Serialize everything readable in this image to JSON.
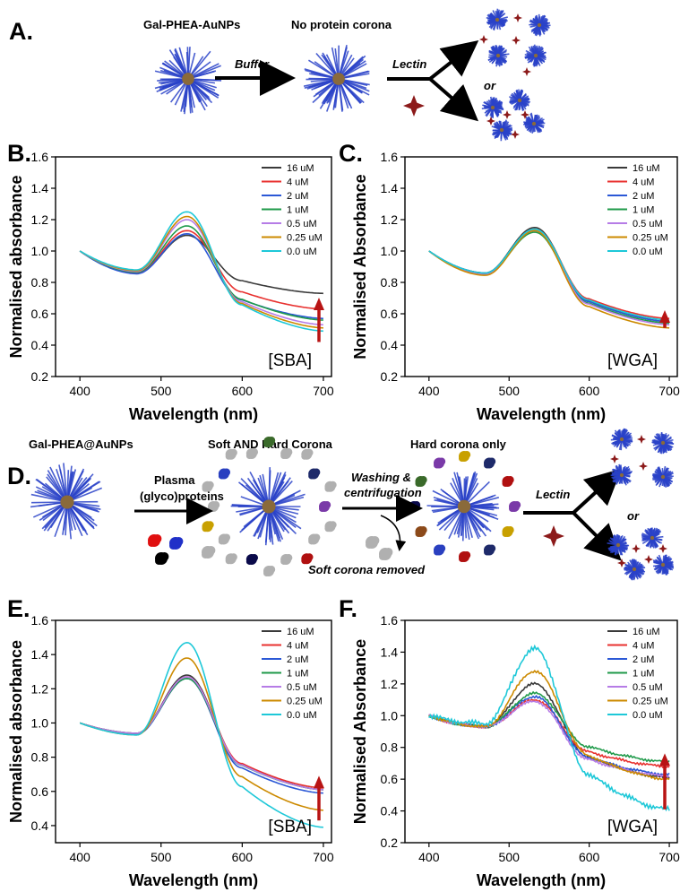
{
  "scheme_a": {
    "letter": "A.",
    "label_left": "Gal-PHEA-AuNPs",
    "label_mid": "No protein corona",
    "arrow1": "Buffer",
    "arrow2": "Lectin",
    "or": "or"
  },
  "scheme_d": {
    "letter": "D.",
    "label_left": "Gal-PHEA@AuNPs",
    "label_mid": "Soft AND Hard Corona",
    "label_right": "Hard corona only",
    "arrow1_line1": "Plasma",
    "arrow1_line2": "(glyco)proteins",
    "arrow2_line1": "Washing &",
    "arrow2_line2": "centrifugation",
    "arrow3": "Lectin",
    "removed": "Soft corona removed",
    "or": "or"
  },
  "colors": {
    "16 uM": "#3a3a3a",
    "4 uM": "#e8312f",
    "2 uM": "#2b58d6",
    "1 uM": "#1f9a4a",
    "0.5 uM": "#b67ce6",
    "0.25 uM": "#cc8a00",
    "0.0 uM": "#1ec8d8",
    "trend_arrow": "#b81414",
    "nanoparticle": "#2a42c8",
    "lectin": "#8c1a1a"
  },
  "chart_data": [
    {
      "id": "B",
      "letter": "B.",
      "type": "line",
      "xlabel": "Wavelength (nm)",
      "ylabel": "Normalised absorbance",
      "xlim": [
        370,
        710
      ],
      "ylim": [
        0.2,
        1.6
      ],
      "xticks": [
        "400",
        "500",
        "600",
        "700"
      ],
      "yticks": [
        "0.2",
        "0.4",
        "0.6",
        "0.8",
        "1.0",
        "1.2",
        "1.4",
        "1.6"
      ],
      "tag": "[SBA]",
      "arrow_from": 0.42,
      "arrow_to": 0.68,
      "series": [
        {
          "name": "16 uM",
          "profile": {
            "start": 1.0,
            "trough": 0.86,
            "peak": 1.1,
            "end": 0.73,
            "noise": 0
          }
        },
        {
          "name": "4 uM",
          "profile": {
            "start": 1.0,
            "trough": 0.86,
            "peak": 1.13,
            "end": 0.63,
            "noise": 0
          }
        },
        {
          "name": "2 uM",
          "profile": {
            "start": 1.0,
            "trough": 0.855,
            "peak": 1.11,
            "end": 0.57,
            "noise": 0
          }
        },
        {
          "name": "1 uM",
          "profile": {
            "start": 1.0,
            "trough": 0.865,
            "peak": 1.16,
            "end": 0.56,
            "noise": 0
          }
        },
        {
          "name": "0.5 uM",
          "profile": {
            "start": 1.0,
            "trough": 0.87,
            "peak": 1.2,
            "end": 0.53,
            "noise": 0
          }
        },
        {
          "name": "0.25 uM",
          "profile": {
            "start": 1.0,
            "trough": 0.875,
            "peak": 1.22,
            "end": 0.51,
            "noise": 0
          }
        },
        {
          "name": "0.0 uM",
          "profile": {
            "start": 1.0,
            "trough": 0.88,
            "peak": 1.25,
            "end": 0.49,
            "noise": 0
          }
        }
      ]
    },
    {
      "id": "C",
      "letter": "C.",
      "type": "line",
      "xlabel": "Wavelength (nm)",
      "ylabel": "Normalised Absorbance",
      "xlim": [
        370,
        710
      ],
      "ylim": [
        0.2,
        1.6
      ],
      "xticks": [
        "400",
        "500",
        "600",
        "700"
      ],
      "yticks": [
        "0.2",
        "0.4",
        "0.6",
        "0.8",
        "1.0",
        "1.2",
        "1.4",
        "1.6"
      ],
      "tag": "[WGA]",
      "arrow_from": 0.51,
      "arrow_to": 0.6,
      "series": [
        {
          "name": "16 uM",
          "profile": {
            "start": 1.0,
            "trough": 0.86,
            "peak": 1.15,
            "end": 0.55,
            "noise": 0
          }
        },
        {
          "name": "4 uM",
          "profile": {
            "start": 1.0,
            "trough": 0.855,
            "peak": 1.14,
            "end": 0.57,
            "noise": 0
          }
        },
        {
          "name": "2 uM",
          "profile": {
            "start": 1.0,
            "trough": 0.86,
            "peak": 1.13,
            "end": 0.55,
            "noise": 0
          }
        },
        {
          "name": "1 uM",
          "profile": {
            "start": 1.0,
            "trough": 0.855,
            "peak": 1.12,
            "end": 0.54,
            "noise": 0
          }
        },
        {
          "name": "0.5 uM",
          "profile": {
            "start": 1.0,
            "trough": 0.85,
            "peak": 1.13,
            "end": 0.53,
            "noise": 0
          }
        },
        {
          "name": "0.25 uM",
          "profile": {
            "start": 1.0,
            "trough": 0.845,
            "peak": 1.13,
            "end": 0.51,
            "noise": 0
          }
        },
        {
          "name": "0.0 uM",
          "profile": {
            "start": 1.0,
            "trough": 0.86,
            "peak": 1.14,
            "end": 0.56,
            "noise": 0
          }
        }
      ]
    },
    {
      "id": "E",
      "letter": "E.",
      "type": "line",
      "xlabel": "Wavelength (nm)",
      "ylabel": "Normalised absorbance",
      "xlim": [
        370,
        710
      ],
      "ylim": [
        0.3,
        1.6
      ],
      "xticks": [
        "400",
        "500",
        "600",
        "700"
      ],
      "yticks": [
        "0.4",
        "0.6",
        "0.8",
        "1.0",
        "1.2",
        "1.4",
        "1.6"
      ],
      "tag": "[SBA]",
      "arrow_from": 0.43,
      "arrow_to": 0.67,
      "series": [
        {
          "name": "16 uM",
          "profile": {
            "start": 1.0,
            "trough": 0.94,
            "peak": 1.28,
            "end": 0.61,
            "noise": 0
          }
        },
        {
          "name": "4 uM",
          "profile": {
            "start": 1.0,
            "trough": 0.94,
            "peak": 1.27,
            "end": 0.62,
            "noise": 0
          }
        },
        {
          "name": "2 uM",
          "profile": {
            "start": 1.0,
            "trough": 0.935,
            "peak": 1.26,
            "end": 0.59,
            "noise": 0
          }
        },
        {
          "name": "1 uM",
          "profile": {
            "start": 1.0,
            "trough": 0.94,
            "peak": 1.26,
            "end": 0.61,
            "noise": 0
          }
        },
        {
          "name": "0.5 uM",
          "profile": {
            "start": 1.0,
            "trough": 0.94,
            "peak": 1.27,
            "end": 0.61,
            "noise": 0
          }
        },
        {
          "name": "0.25 uM",
          "profile": {
            "start": 1.0,
            "trough": 0.93,
            "peak": 1.38,
            "end": 0.49,
            "noise": 0
          }
        },
        {
          "name": "0.0 uM",
          "profile": {
            "start": 1.0,
            "trough": 0.93,
            "peak": 1.47,
            "end": 0.39,
            "noise": 0
          }
        }
      ]
    },
    {
      "id": "F",
      "letter": "F.",
      "type": "line",
      "xlabel": "Wavelength (nm)",
      "ylabel": "Normalised Absorbance",
      "xlim": [
        370,
        710
      ],
      "ylim": [
        0.2,
        1.6
      ],
      "xticks": [
        "400",
        "500",
        "600",
        "700"
      ],
      "yticks": [
        "0.2",
        "0.4",
        "0.6",
        "0.8",
        "1.0",
        "1.2",
        "1.4",
        "1.6"
      ],
      "tag": "[WGA]",
      "arrow_from": 0.41,
      "arrow_to": 0.74,
      "series": [
        {
          "name": "16 uM",
          "profile": {
            "start": 1.0,
            "trough": 0.93,
            "peak": 1.2,
            "end": 0.61,
            "noise": 0.006
          }
        },
        {
          "name": "4 uM",
          "profile": {
            "start": 1.0,
            "trough": 0.93,
            "peak": 1.1,
            "end": 0.68,
            "noise": 0.006
          }
        },
        {
          "name": "2 uM",
          "profile": {
            "start": 1.0,
            "trough": 0.93,
            "peak": 1.12,
            "end": 0.63,
            "noise": 0.006
          }
        },
        {
          "name": "1 uM",
          "profile": {
            "start": 1.0,
            "trough": 0.93,
            "peak": 1.14,
            "end": 0.71,
            "noise": 0.006
          }
        },
        {
          "name": "0.5 uM",
          "profile": {
            "start": 1.0,
            "trough": 0.93,
            "peak": 1.09,
            "end": 0.62,
            "noise": 0.006
          }
        },
        {
          "name": "0.25 uM",
          "profile": {
            "start": 1.0,
            "trough": 0.93,
            "peak": 1.28,
            "end": 0.6,
            "noise": 0.006
          }
        },
        {
          "name": "0.0 uM",
          "profile": {
            "start": 1.0,
            "trough": 0.95,
            "peak": 1.42,
            "end": 0.41,
            "noise": 0.012
          }
        }
      ]
    }
  ]
}
